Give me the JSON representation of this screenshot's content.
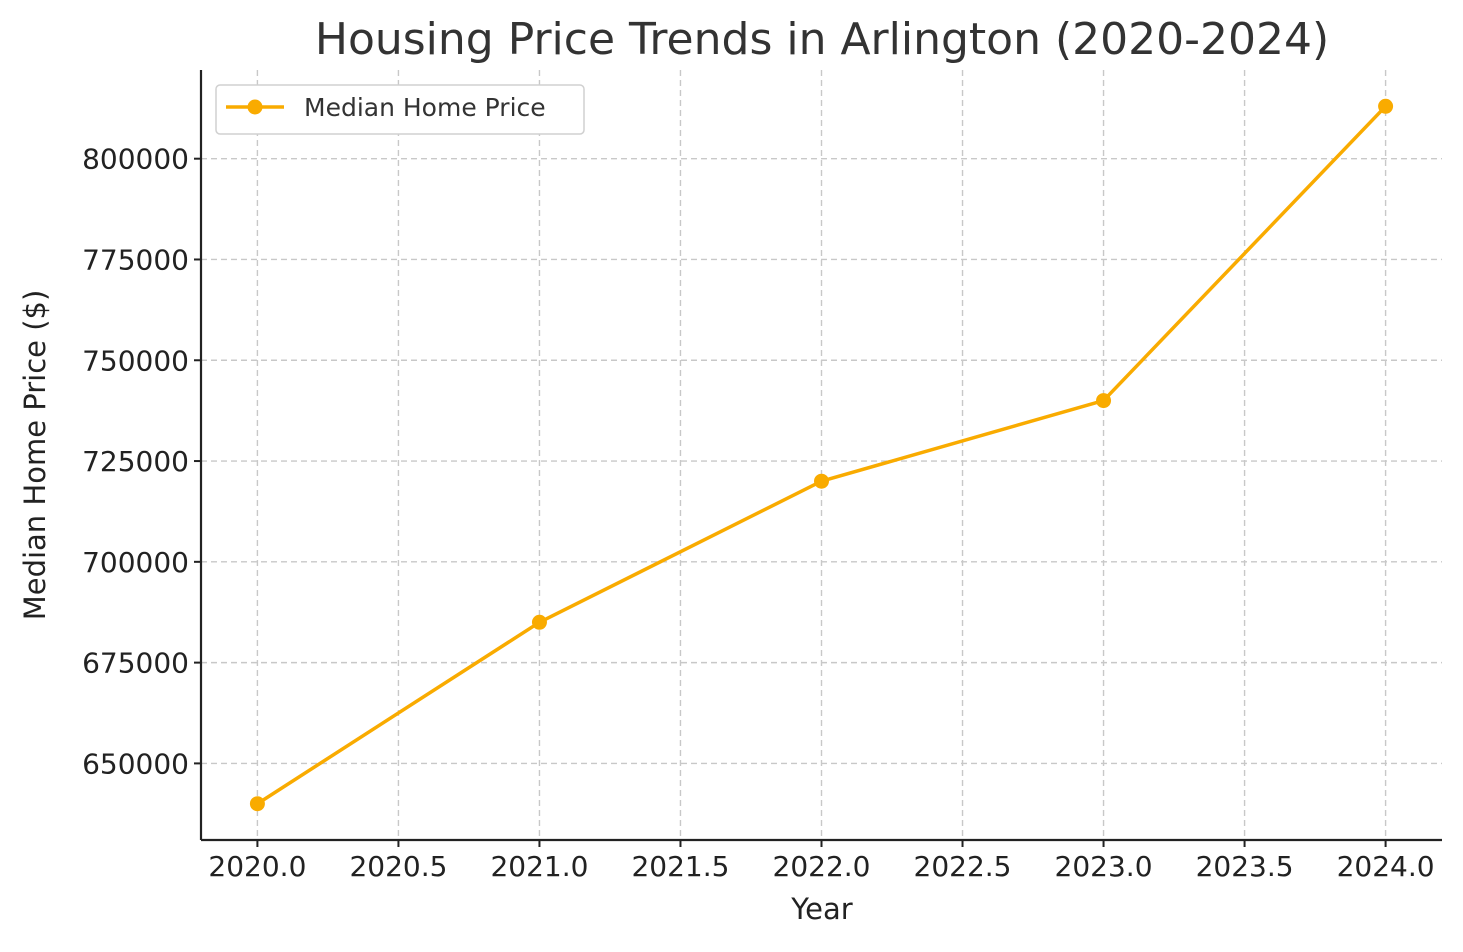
{
  "chart_data": {
    "type": "line",
    "title": "Housing Price Trends in Arlington (2020-2024)",
    "xlabel": "Year",
    "ylabel": "Median Home Price ($)",
    "x": [
      2020,
      2021,
      2022,
      2023,
      2024
    ],
    "series": [
      {
        "name": "Median Home Price",
        "values": [
          640000,
          685000,
          720000,
          740000,
          813000
        ],
        "color": "#f9ab00",
        "marker": "circle"
      }
    ],
    "xlim": [
      2019.8,
      2024.2
    ],
    "ylim": [
      631000,
      822000
    ],
    "x_ticks": [
      {
        "value": 2020.0,
        "label": "2020.0"
      },
      {
        "value": 2020.5,
        "label": "2020.5"
      },
      {
        "value": 2021.0,
        "label": "2021.0"
      },
      {
        "value": 2021.5,
        "label": "2021.5"
      },
      {
        "value": 2022.0,
        "label": "2022.0"
      },
      {
        "value": 2022.5,
        "label": "2022.5"
      },
      {
        "value": 2023.0,
        "label": "2023.0"
      },
      {
        "value": 2023.5,
        "label": "2023.5"
      },
      {
        "value": 2024.0,
        "label": "2024.0"
      }
    ],
    "y_ticks": [
      {
        "value": 650000,
        "label": "650000"
      },
      {
        "value": 675000,
        "label": "675000"
      },
      {
        "value": 700000,
        "label": "700000"
      },
      {
        "value": 725000,
        "label": "725000"
      },
      {
        "value": 750000,
        "label": "750000"
      },
      {
        "value": 775000,
        "label": "775000"
      },
      {
        "value": 800000,
        "label": "800000"
      }
    ],
    "grid": true,
    "legend_position": "top-left"
  }
}
